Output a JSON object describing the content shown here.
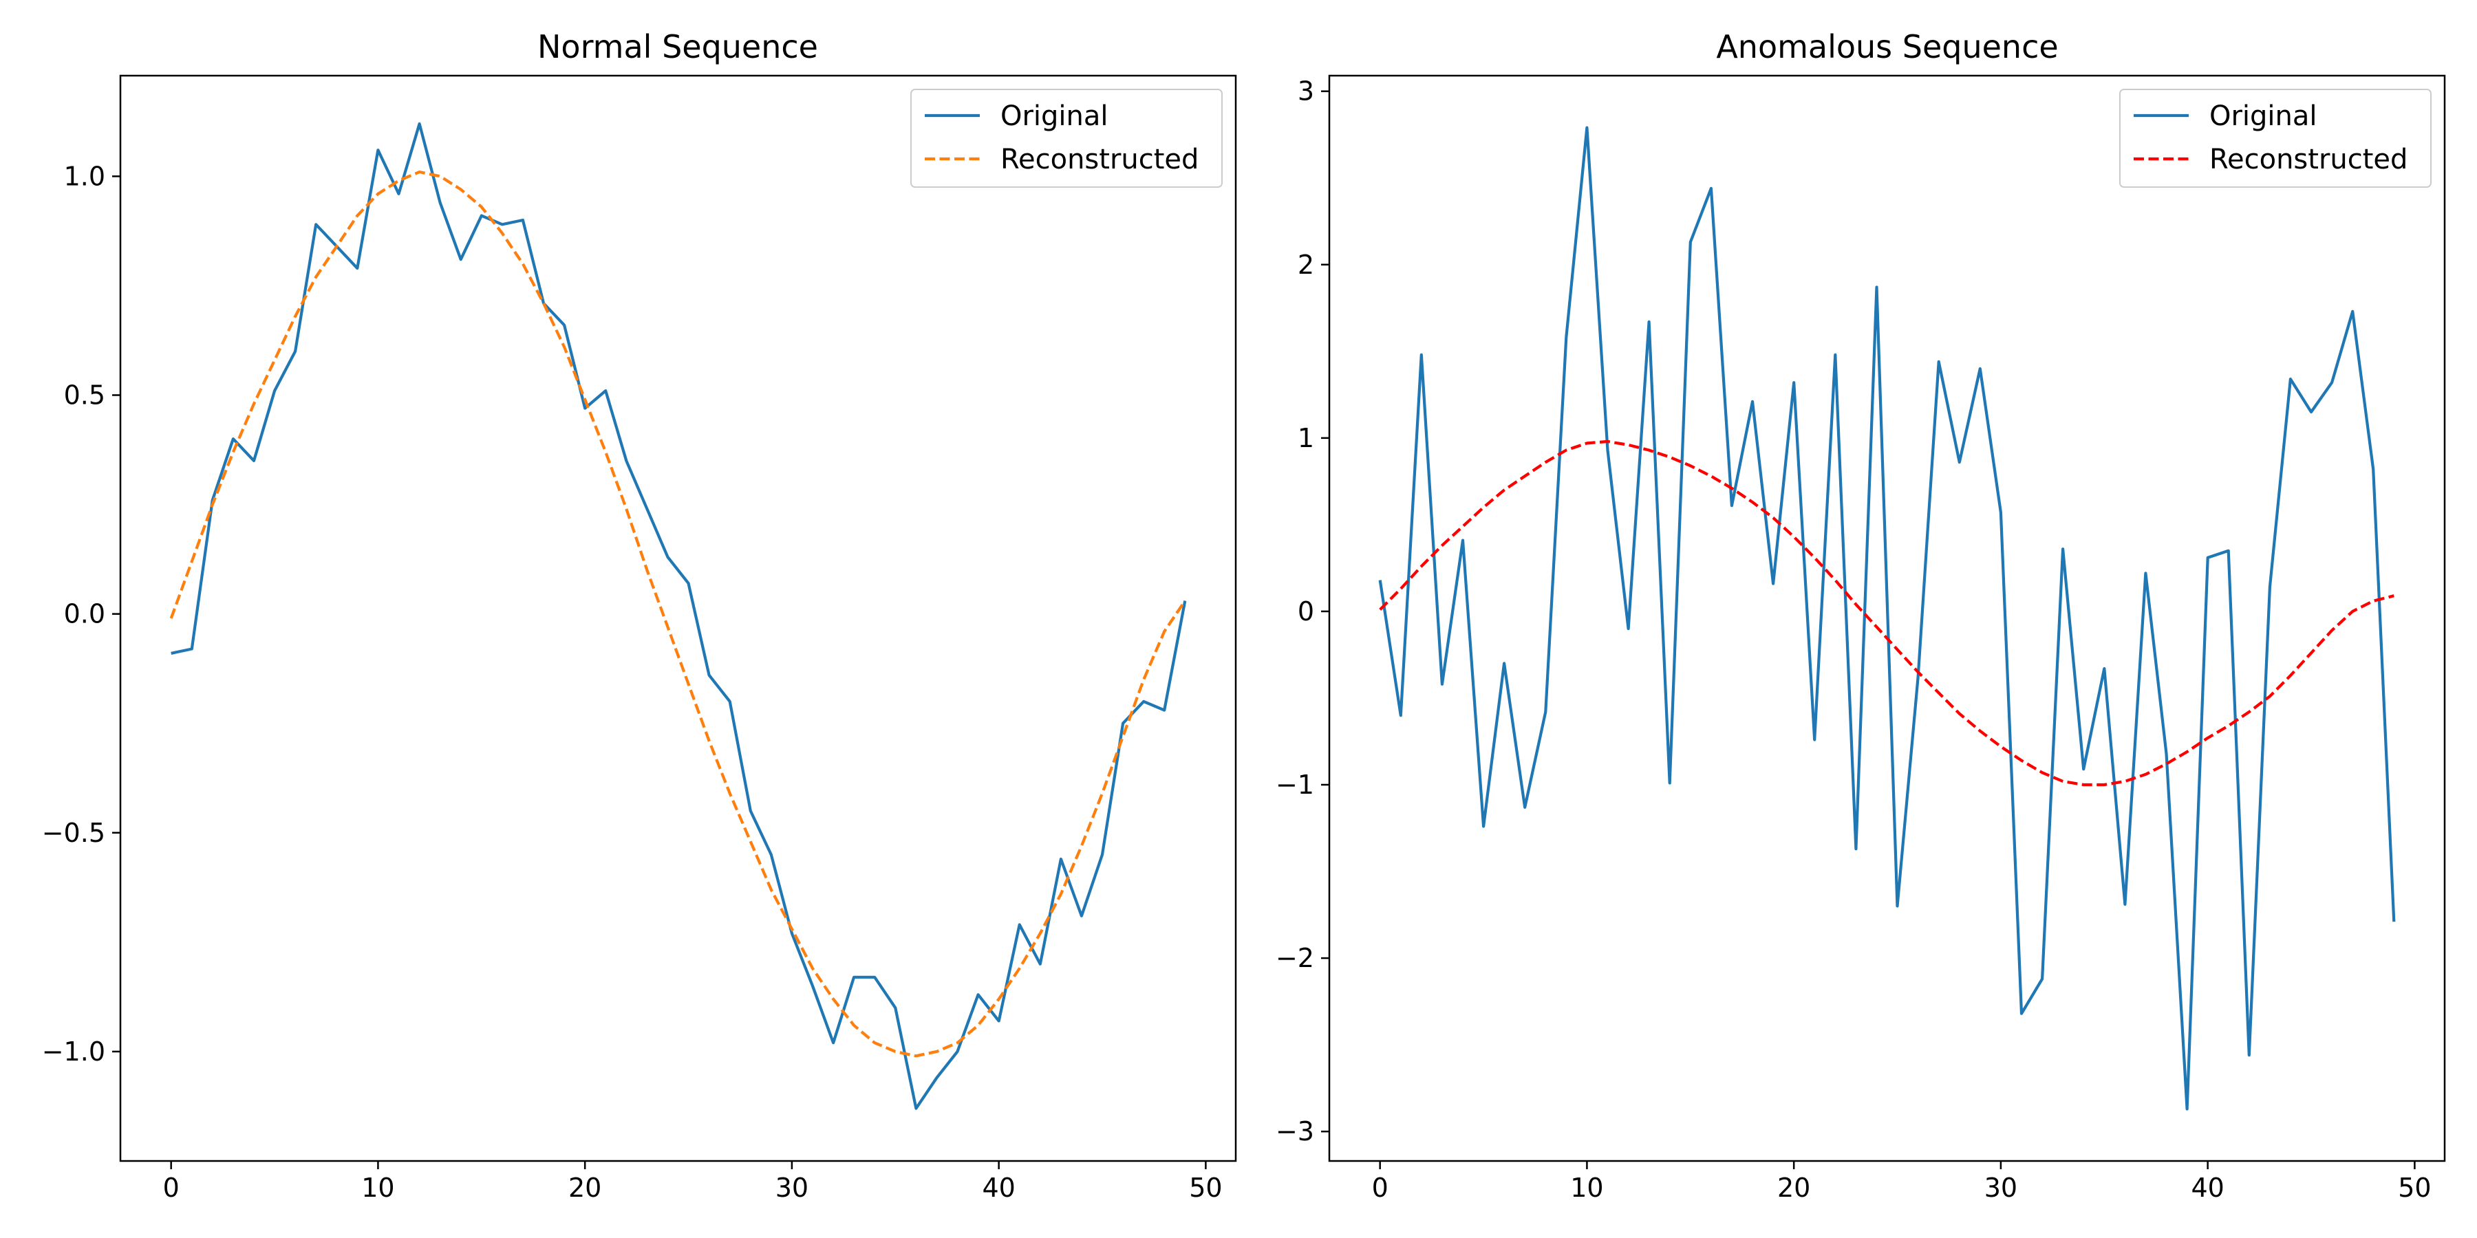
{
  "chart_data": [
    {
      "type": "line",
      "title": "Normal Sequence",
      "xlabel": "",
      "ylabel": "",
      "xlim": [
        -2.45,
        51.45
      ],
      "ylim": [
        -1.25,
        1.23
      ],
      "grid": false,
      "legend": "top-right",
      "x_ticks": [
        0,
        10,
        20,
        30,
        40,
        50
      ],
      "x_tick_labels": [
        "0",
        "10",
        "20",
        "30",
        "40",
        "50"
      ],
      "y_ticks": [
        -1.0,
        -0.5,
        0.0,
        0.5,
        1.0
      ],
      "y_tick_labels": [
        "−1.0",
        "−0.5",
        "0.0",
        "0.5",
        "1.0"
      ],
      "x": [
        0,
        1,
        2,
        3,
        4,
        5,
        6,
        7,
        8,
        9,
        10,
        11,
        12,
        13,
        14,
        15,
        16,
        17,
        18,
        19,
        20,
        21,
        22,
        23,
        24,
        25,
        26,
        27,
        28,
        29,
        30,
        31,
        32,
        33,
        34,
        35,
        36,
        37,
        38,
        39,
        40,
        41,
        42,
        43,
        44,
        45,
        46,
        47,
        48,
        49
      ],
      "series": [
        {
          "name": "Original",
          "color": "#1f77b4",
          "dash": "solid",
          "values": [
            -0.09,
            -0.08,
            0.26,
            0.4,
            0.35,
            0.51,
            0.6,
            0.89,
            0.84,
            0.79,
            1.06,
            0.96,
            1.12,
            0.94,
            0.81,
            0.91,
            0.89,
            0.9,
            0.71,
            0.66,
            0.47,
            0.51,
            0.35,
            0.24,
            0.13,
            0.07,
            -0.14,
            -0.2,
            -0.45,
            -0.55,
            -0.73,
            -0.85,
            -0.98,
            -0.83,
            -0.83,
            -0.9,
            -1.13,
            -1.06,
            -1.0,
            -0.87,
            -0.93,
            -0.71,
            -0.8,
            -0.56,
            -0.69,
            -0.55,
            -0.25,
            -0.2,
            -0.22,
            0.03
          ]
        },
        {
          "name": "Reconstructed",
          "color": "#ff7f0e",
          "dash": "dashed",
          "values": [
            -0.01,
            0.12,
            0.25,
            0.37,
            0.48,
            0.58,
            0.68,
            0.77,
            0.84,
            0.91,
            0.96,
            0.99,
            1.01,
            1.0,
            0.97,
            0.93,
            0.87,
            0.8,
            0.71,
            0.61,
            0.49,
            0.37,
            0.24,
            0.1,
            -0.03,
            -0.16,
            -0.29,
            -0.41,
            -0.52,
            -0.63,
            -0.72,
            -0.81,
            -0.88,
            -0.94,
            -0.98,
            -1.0,
            -1.01,
            -1.0,
            -0.98,
            -0.94,
            -0.88,
            -0.81,
            -0.73,
            -0.64,
            -0.53,
            -0.41,
            -0.28,
            -0.15,
            -0.04,
            0.03
          ]
        }
      ]
    },
    {
      "type": "line",
      "title": "Anomalous Sequence",
      "xlabel": "",
      "ylabel": "",
      "xlim": [
        -2.45,
        51.45
      ],
      "ylim": [
        -3.17,
        3.09
      ],
      "grid": false,
      "legend": "top-right",
      "x_ticks": [
        0,
        10,
        20,
        30,
        40,
        50
      ],
      "x_tick_labels": [
        "0",
        "10",
        "20",
        "30",
        "40",
        "50"
      ],
      "y_ticks": [
        -3,
        -2,
        -1,
        0,
        1,
        2,
        3
      ],
      "y_tick_labels": [
        "−3",
        "−2",
        "−1",
        "0",
        "1",
        "2",
        "3"
      ],
      "x": [
        0,
        1,
        2,
        3,
        4,
        5,
        6,
        7,
        8,
        9,
        10,
        11,
        12,
        13,
        14,
        15,
        16,
        17,
        18,
        19,
        20,
        21,
        22,
        23,
        24,
        25,
        26,
        27,
        28,
        29,
        30,
        31,
        32,
        33,
        34,
        35,
        36,
        37,
        38,
        39,
        40,
        41,
        42,
        43,
        44,
        45,
        46,
        47,
        48,
        49
      ],
      "series": [
        {
          "name": "Original",
          "color": "#1f77b4",
          "dash": "solid",
          "values": [
            0.18,
            -0.6,
            1.48,
            -0.42,
            0.41,
            -1.24,
            -0.3,
            -1.13,
            -0.58,
            1.58,
            2.79,
            0.93,
            -0.1,
            1.67,
            -0.99,
            2.13,
            2.44,
            0.61,
            1.21,
            0.16,
            1.32,
            -0.74,
            1.48,
            -1.37,
            1.87,
            -1.7,
            -0.38,
            1.44,
            0.86,
            1.4,
            0.57,
            -2.32,
            -2.12,
            0.36,
            -0.91,
            -0.33,
            -1.69,
            0.22,
            -0.82,
            -2.87,
            0.31,
            0.35,
            -2.56,
            0.14,
            1.34,
            1.15,
            1.32,
            1.73,
            0.82,
            -1.79
          ]
        },
        {
          "name": "Reconstructed",
          "color": "#ff0000",
          "dash": "dashed",
          "values": [
            0.01,
            0.13,
            0.26,
            0.38,
            0.49,
            0.6,
            0.7,
            0.78,
            0.86,
            0.93,
            0.97,
            0.98,
            0.96,
            0.93,
            0.89,
            0.84,
            0.78,
            0.71,
            0.63,
            0.54,
            0.43,
            0.31,
            0.18,
            0.04,
            -0.09,
            -0.22,
            -0.35,
            -0.47,
            -0.59,
            -0.69,
            -0.78,
            -0.86,
            -0.93,
            -0.98,
            -1.0,
            -1.0,
            -0.98,
            -0.94,
            -0.88,
            -0.81,
            -0.73,
            -0.66,
            -0.58,
            -0.49,
            -0.37,
            -0.24,
            -0.11,
            0.0,
            0.06,
            0.09
          ]
        }
      ]
    }
  ]
}
